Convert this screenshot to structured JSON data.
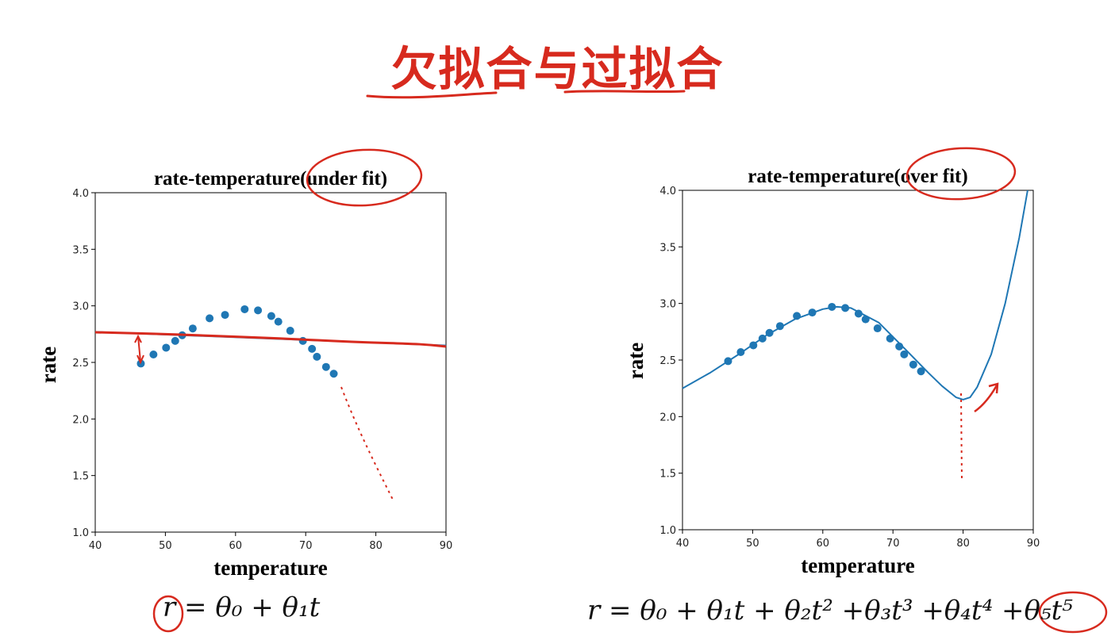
{
  "slide": {
    "title": "欠拟合与过拟合",
    "accent_color": "#d72a1e"
  },
  "chart_data": [
    {
      "type": "scatter",
      "title": "rate-temperature(under fit)",
      "xlabel": "temperature",
      "ylabel": "rate",
      "xlim": [
        40,
        90
      ],
      "ylim": [
        1.0,
        4.0
      ],
      "xticks": [
        40,
        50,
        60,
        70,
        80,
        90
      ],
      "yticks": [
        1.0,
        1.5,
        2.0,
        2.5,
        3.0,
        3.5,
        4.0
      ],
      "grid": false,
      "series": [
        {
          "kind": "points",
          "color": "#1f77b4",
          "x": [
            46.5,
            48.3,
            50.1,
            51.4,
            52.4,
            53.9,
            56.3,
            58.5,
            61.3,
            63.2,
            65.1,
            66.1,
            67.8,
            69.6,
            70.9,
            71.6,
            72.9,
            74.0
          ],
          "y": [
            2.49,
            2.57,
            2.63,
            2.69,
            2.74,
            2.8,
            2.89,
            2.92,
            2.97,
            2.96,
            2.91,
            2.86,
            2.78,
            2.69,
            2.62,
            2.55,
            2.46,
            2.4
          ]
        },
        {
          "kind": "fit-line",
          "color": "#1f77b4",
          "x": [
            40,
            90
          ],
          "y": [
            2.77,
            2.65
          ]
        }
      ],
      "equation": "r = θ₀ + θ₁t"
    },
    {
      "type": "scatter",
      "title": "rate-temperature(over fit)",
      "xlabel": "temperature",
      "ylabel": "rate",
      "xlim": [
        40,
        90
      ],
      "ylim": [
        1.0,
        4.0
      ],
      "xticks": [
        40,
        50,
        60,
        70,
        80,
        90
      ],
      "yticks": [
        1.0,
        1.5,
        2.0,
        2.5,
        3.0,
        3.5,
        4.0
      ],
      "grid": false,
      "series": [
        {
          "kind": "points",
          "color": "#1f77b4",
          "x": [
            46.5,
            48.3,
            50.1,
            51.4,
            52.4,
            53.9,
            56.3,
            58.5,
            61.3,
            63.2,
            65.1,
            66.1,
            67.8,
            69.6,
            70.9,
            71.6,
            72.9,
            74.0
          ],
          "y": [
            2.49,
            2.57,
            2.63,
            2.69,
            2.74,
            2.8,
            2.89,
            2.92,
            2.97,
            2.96,
            2.91,
            2.86,
            2.78,
            2.69,
            2.62,
            2.55,
            2.46,
            2.4
          ]
        },
        {
          "kind": "fit-curve",
          "color": "#1f77b4",
          "x": [
            40,
            44,
            48,
            52,
            56,
            60,
            62,
            64,
            68,
            72,
            75,
            77,
            79,
            80,
            81,
            82,
            84,
            86,
            88,
            89.2
          ],
          "y": [
            2.25,
            2.39,
            2.55,
            2.72,
            2.86,
            2.95,
            2.97,
            2.96,
            2.83,
            2.58,
            2.39,
            2.27,
            2.17,
            2.15,
            2.17,
            2.26,
            2.55,
            3.0,
            3.58,
            4.0
          ]
        }
      ],
      "equation": "r = θ₀ + θ₁t + θ₂t² +θ₃t³ +θ₄t⁴ +θ₅t⁵"
    }
  ]
}
